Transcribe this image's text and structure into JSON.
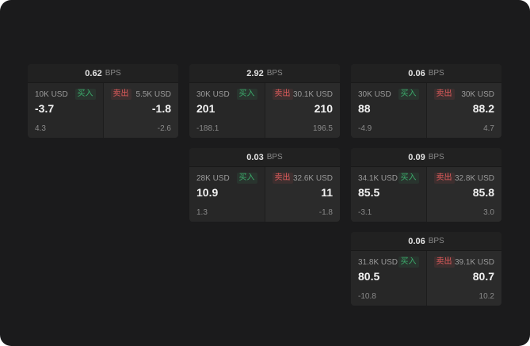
{
  "app": {
    "background": "#1b1b1c",
    "card_background": "#262626",
    "accent_buy": "#3cab6b",
    "accent_sell": "#e05c5c"
  },
  "labels": {
    "bps": "BPS",
    "buy": "买入",
    "sell": "卖出"
  },
  "cards": [
    {
      "bps": "0.62",
      "buy": {
        "amount": "10K USD",
        "price": "-3.7",
        "delta": "4.3"
      },
      "sell": {
        "amount": "5.5K USD",
        "price": "-1.8",
        "delta": "-2.6"
      }
    },
    {
      "bps": "2.92",
      "buy": {
        "amount": "30K USD",
        "price": "201",
        "delta": "-188.1"
      },
      "sell": {
        "amount": "30.1K USD",
        "price": "210",
        "delta": "196.5"
      }
    },
    {
      "bps": "0.06",
      "buy": {
        "amount": "30K USD",
        "price": "88",
        "delta": "-4.9"
      },
      "sell": {
        "amount": "30K USD",
        "price": "88.2",
        "delta": "4.7"
      }
    },
    {
      "bps": "0.03",
      "buy": {
        "amount": "28K USD",
        "price": "10.9",
        "delta": "1.3"
      },
      "sell": {
        "amount": "32.6K USD",
        "price": "11",
        "delta": "-1.8"
      }
    },
    {
      "bps": "0.09",
      "buy": {
        "amount": "34.1K USD",
        "price": "85.5",
        "delta": "-3.1"
      },
      "sell": {
        "amount": "32.8K USD",
        "price": "85.8",
        "delta": "3.0"
      }
    },
    {
      "bps": "0.06",
      "buy": {
        "amount": "31.8K USD",
        "price": "80.5",
        "delta": "-10.8"
      },
      "sell": {
        "amount": "39.1K USD",
        "price": "80.7",
        "delta": "10.2"
      }
    }
  ]
}
